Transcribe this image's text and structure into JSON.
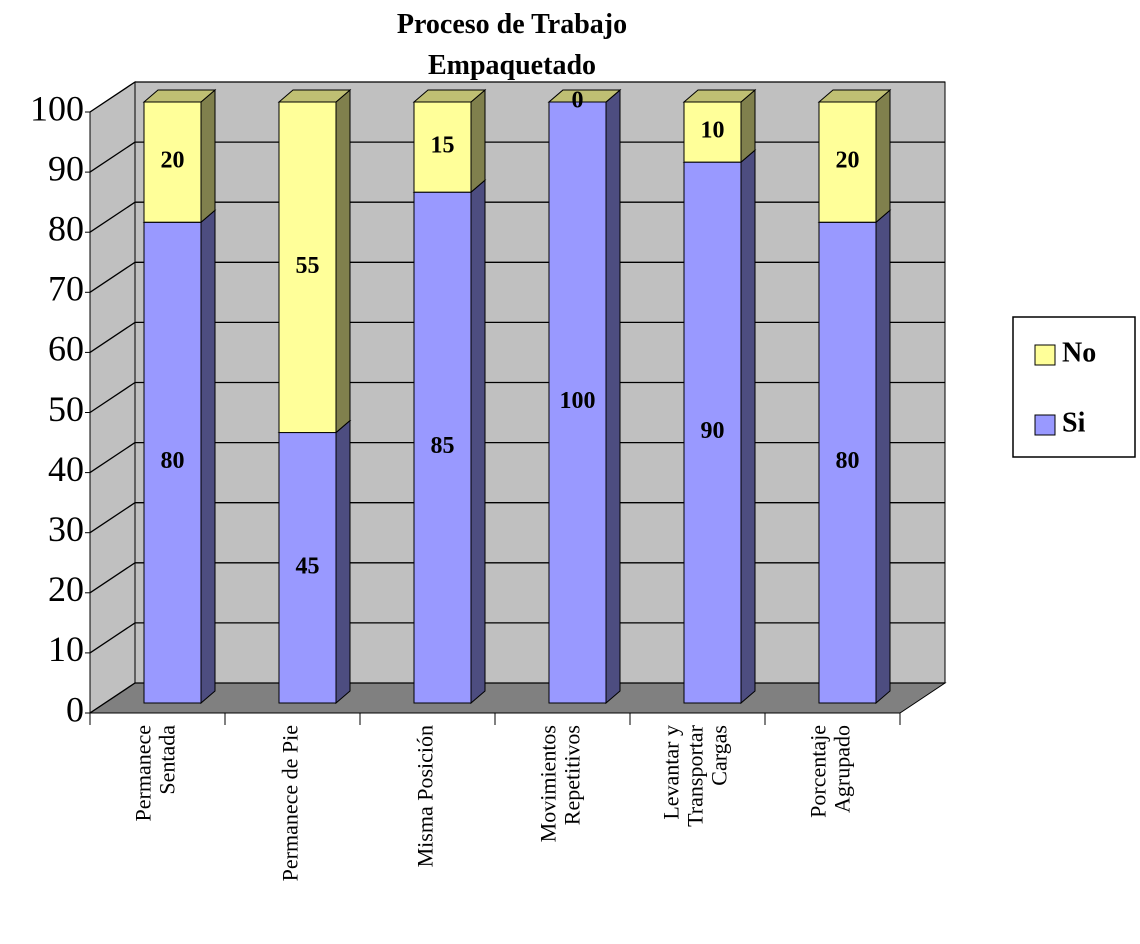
{
  "chart_data": {
    "type": "stacked_bar_3d",
    "title": "Proceso de Trabajo\nEmpaquetado",
    "categories": [
      "Permanece\nSentada",
      "Permanece de Pie",
      "Misma Posición",
      "Movimientos\nRepetitivos",
      "Levantar y\nTransportar\nCargas",
      "Porcentaje\nAgrupado"
    ],
    "series": [
      {
        "name": "Si",
        "color": "#9999ff",
        "side_color": "#4d4d80",
        "top_color": "#7373bf",
        "values": [
          80,
          45,
          85,
          100,
          90,
          80
        ]
      },
      {
        "name": "No",
        "color": "#ffff99",
        "side_color": "#80804d",
        "top_color": "#bfbf73",
        "values": [
          20,
          55,
          15,
          0,
          10,
          20
        ]
      }
    ],
    "ylim": [
      0,
      100
    ],
    "yticks": [
      0,
      10,
      20,
      30,
      40,
      50,
      60,
      70,
      80,
      90,
      100
    ],
    "grid": true,
    "legend": "right"
  }
}
